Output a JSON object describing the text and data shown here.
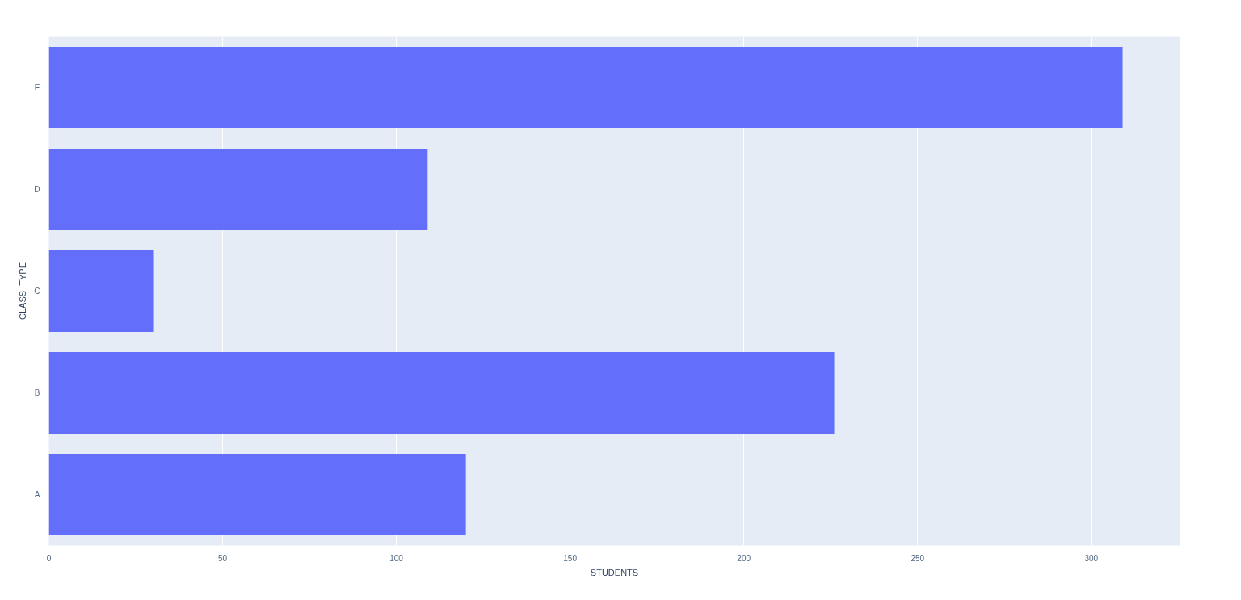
{
  "chart_data": {
    "type": "bar",
    "orientation": "horizontal",
    "xlabel": "STUDENTS",
    "ylabel": "CLASS_TYPE",
    "categories": [
      "E",
      "D",
      "C",
      "B",
      "A"
    ],
    "values": [
      309,
      109,
      30,
      226,
      120
    ],
    "color": "#636efa",
    "xlim": [
      0,
      325.5
    ],
    "xticks": [
      0,
      50,
      100,
      150,
      200,
      250,
      300
    ],
    "grid": "x"
  }
}
